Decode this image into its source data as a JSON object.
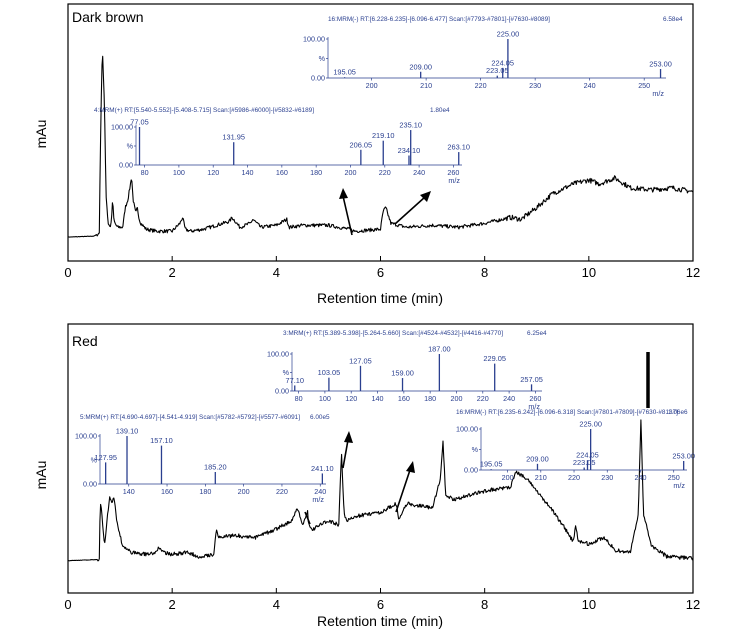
{
  "chart_data": [
    {
      "type": "line",
      "title": "Dark brown",
      "xlabel": "Retention time (min)",
      "ylabel": "mAu",
      "xlim": [
        0,
        12
      ],
      "xticks": [
        0,
        2,
        4,
        6,
        8,
        10,
        12
      ],
      "grid": false,
      "series": [
        {
          "x": [
            0.0,
            0.5,
            0.6,
            0.63,
            0.66,
            0.7,
            0.73,
            0.77,
            0.82,
            0.86,
            0.88,
            0.9,
            0.95,
            1.05,
            1.1,
            1.15,
            1.2,
            1.22,
            1.25,
            1.3,
            1.33,
            1.37,
            1.4,
            1.5,
            1.7,
            2.0,
            2.15,
            2.2,
            2.25,
            2.35,
            2.6,
            3.1,
            3.15,
            3.3,
            3.5,
            3.55,
            3.7,
            4.0,
            4.2,
            4.25,
            4.5,
            5.0,
            5.4,
            5.5,
            6.0,
            6.05,
            6.1,
            6.2,
            6.5,
            7.0,
            7.5,
            8.0,
            8.5,
            8.7,
            9.0,
            9.3,
            9.7,
            10.0,
            10.2,
            10.5,
            10.8,
            11.2,
            11.6,
            12.0
          ],
          "y": [
            0.03,
            0.035,
            0.05,
            0.6,
            1.0,
            0.7,
            0.25,
            0.1,
            0.08,
            0.22,
            0.12,
            0.1,
            0.08,
            0.08,
            0.18,
            0.22,
            0.3,
            0.34,
            0.22,
            0.15,
            0.18,
            0.12,
            0.1,
            0.07,
            0.06,
            0.06,
            0.1,
            0.13,
            0.07,
            0.06,
            0.07,
            0.11,
            0.13,
            0.08,
            0.1,
            0.12,
            0.08,
            0.09,
            0.12,
            0.08,
            0.09,
            0.09,
            0.07,
            0.06,
            0.07,
            0.16,
            0.18,
            0.1,
            0.08,
            0.09,
            0.08,
            0.1,
            0.13,
            0.12,
            0.18,
            0.25,
            0.3,
            0.32,
            0.3,
            0.33,
            0.28,
            0.27,
            0.28,
            0.26
          ]
        }
      ],
      "insets": [
        {
          "header": "16:MRM(-) RT:[6.228-6.235]-[6.096-6.477] Scan:[#7793-#7801]-[#7630-#8089]",
          "max_label": "6.58e4",
          "y_ticks": [
            "100.00",
            "%",
            "0.00"
          ],
          "x_ticks": [
            200,
            210,
            220,
            230,
            240,
            250
          ],
          "xlim": [
            192,
            254
          ],
          "x_unit": "m/z",
          "peaks": [
            {
              "mz": 195.05,
              "label": "195.05",
              "intensity": 2
            },
            {
              "mz": 209.0,
              "label": "209.00",
              "intensity": 16
            },
            {
              "mz": 223.05,
              "label": "223.05",
              "intensity": 6
            },
            {
              "mz": 224.05,
              "label": "224.05",
              "intensity": 26
            },
            {
              "mz": 225.0,
              "label": "225.00",
              "intensity": 100
            },
            {
              "mz": 253.0,
              "label": "253.00",
              "intensity": 23
            }
          ]
        },
        {
          "header": "4:MRM(+) RT:[5.540-5.552]-[5.408-5.715] Scan:[#5986-#6000]-[#5832-#6189]",
          "max_label": "1.80e4",
          "y_ticks": [
            "100.00",
            "%",
            "0.00"
          ],
          "x_ticks": [
            80,
            100,
            120,
            140,
            160,
            180,
            200,
            220,
            240,
            260
          ],
          "xlim": [
            75,
            265
          ],
          "x_unit": "m/z",
          "peaks": [
            {
              "mz": 77.05,
              "label": "77.05",
              "intensity": 100
            },
            {
              "mz": 131.95,
              "label": "131.95",
              "intensity": 60
            },
            {
              "mz": 206.05,
              "label": "206.05",
              "intensity": 40
            },
            {
              "mz": 219.1,
              "label": "219.10",
              "intensity": 64
            },
            {
              "mz": 234.1,
              "label": "234.10",
              "intensity": 25
            },
            {
              "mz": 235.1,
              "label": "235.10",
              "intensity": 92
            },
            {
              "mz": 263.1,
              "label": "263.10",
              "intensity": 34
            }
          ]
        }
      ]
    },
    {
      "type": "line",
      "title": "Red",
      "xlabel": "Retention time (min)",
      "ylabel": "mAu",
      "xlim": [
        0,
        12
      ],
      "xticks": [
        0,
        2,
        4,
        6,
        8,
        10,
        12
      ],
      "grid": false,
      "series": [
        {
          "x": [
            0.0,
            0.55,
            0.6,
            0.62,
            0.64,
            0.7,
            0.8,
            0.85,
            0.88,
            0.95,
            1.05,
            1.2,
            1.5,
            1.7,
            1.75,
            1.8,
            2.0,
            2.3,
            2.5,
            2.8,
            2.85,
            2.9,
            3.2,
            3.6,
            4.0,
            4.3,
            4.4,
            4.5,
            4.6,
            4.62,
            4.7,
            5.0,
            5.2,
            5.25,
            5.3,
            5.35,
            5.5,
            6.0,
            6.3,
            6.35,
            6.5,
            7.0,
            7.15,
            7.2,
            7.25,
            7.4,
            8.0,
            8.5,
            8.6,
            8.8,
            9.0,
            9.2,
            9.5,
            9.7,
            9.75,
            9.8,
            10.0,
            10.3,
            10.5,
            10.8,
            10.95,
            11.0,
            11.05,
            11.2,
            11.5,
            12.0
          ],
          "y": [
            0.03,
            0.035,
            0.04,
            0.3,
            0.28,
            0.1,
            0.34,
            0.3,
            0.33,
            0.2,
            0.1,
            0.07,
            0.06,
            0.07,
            0.1,
            0.07,
            0.06,
            0.07,
            0.05,
            0.06,
            0.18,
            0.14,
            0.15,
            0.14,
            0.18,
            0.22,
            0.28,
            0.2,
            0.26,
            0.2,
            0.18,
            0.22,
            0.2,
            0.55,
            0.25,
            0.22,
            0.24,
            0.26,
            0.3,
            0.22,
            0.3,
            0.28,
            0.42,
            0.6,
            0.34,
            0.32,
            0.36,
            0.38,
            0.45,
            0.42,
            0.36,
            0.3,
            0.2,
            0.12,
            0.2,
            0.12,
            0.11,
            0.14,
            0.08,
            0.07,
            0.25,
            0.7,
            0.25,
            0.1,
            0.05,
            0.04
          ]
        }
      ],
      "insets": [
        {
          "header": "3:MRM(+) RT:[5.389-5.398]-[5.264-5.660] Scan:[#4524-#4532]-[#4416-#4770]",
          "max_label": "6.25e4",
          "y_ticks": [
            "100.00",
            "%",
            "0.00"
          ],
          "x_ticks": [
            80,
            100,
            120,
            140,
            160,
            180,
            200,
            220,
            240,
            260
          ],
          "xlim": [
            75,
            265
          ],
          "x_unit": "m/z",
          "peaks": [
            {
              "mz": 77.1,
              "label": "77.10",
              "intensity": 15
            },
            {
              "mz": 103.05,
              "label": "103.05",
              "intensity": 36
            },
            {
              "mz": 127.05,
              "label": "127.05",
              "intensity": 68
            },
            {
              "mz": 159.0,
              "label": "159.00",
              "intensity": 35
            },
            {
              "mz": 187.0,
              "label": "187.00",
              "intensity": 100
            },
            {
              "mz": 229.05,
              "label": "229.05",
              "intensity": 74
            },
            {
              "mz": 257.05,
              "label": "257.05",
              "intensity": 18
            }
          ]
        },
        {
          "header": "5:MRM(+) RT:[4.690-4.697]-[4.541-4.919] Scan:[#5782-#5792]-[#5577-#6091]",
          "max_label": "6.00e5",
          "y_ticks": [
            "100.00",
            "%",
            "0.00"
          ],
          "x_ticks": [
            140,
            160,
            180,
            200,
            220,
            240
          ],
          "xlim": [
            125,
            243
          ],
          "x_unit": "m/z",
          "peaks": [
            {
              "mz": 127.95,
              "label": "127.95",
              "intensity": 45
            },
            {
              "mz": 139.1,
              "label": "139.10",
              "intensity": 100
            },
            {
              "mz": 157.1,
              "label": "157.10",
              "intensity": 80
            },
            {
              "mz": 185.2,
              "label": "185.20",
              "intensity": 25
            },
            {
              "mz": 241.1,
              "label": "241.10",
              "intensity": 22
            }
          ]
        },
        {
          "header": "16:MRM(-) RT:[6.235-6.242]-[6.096-6.318] Scan:[#7801-#7809]-[#7630-#8137]",
          "max_label": "1.06e6",
          "y_ticks": [
            "100.00",
            "%",
            "0.00"
          ],
          "x_ticks": [
            200,
            210,
            220,
            230,
            240,
            250
          ],
          "xlim": [
            192,
            254
          ],
          "x_unit": "m/z",
          "peaks": [
            {
              "mz": 195.05,
              "label": "195.05",
              "intensity": 2
            },
            {
              "mz": 209.0,
              "label": "209.00",
              "intensity": 15
            },
            {
              "mz": 223.05,
              "label": "223.05",
              "intensity": 6
            },
            {
              "mz": 224.05,
              "label": "224.05",
              "intensity": 24
            },
            {
              "mz": 225.0,
              "label": "225.00",
              "intensity": 100
            },
            {
              "mz": 253.0,
              "label": "253.00",
              "intensity": 22
            }
          ]
        }
      ]
    }
  ]
}
